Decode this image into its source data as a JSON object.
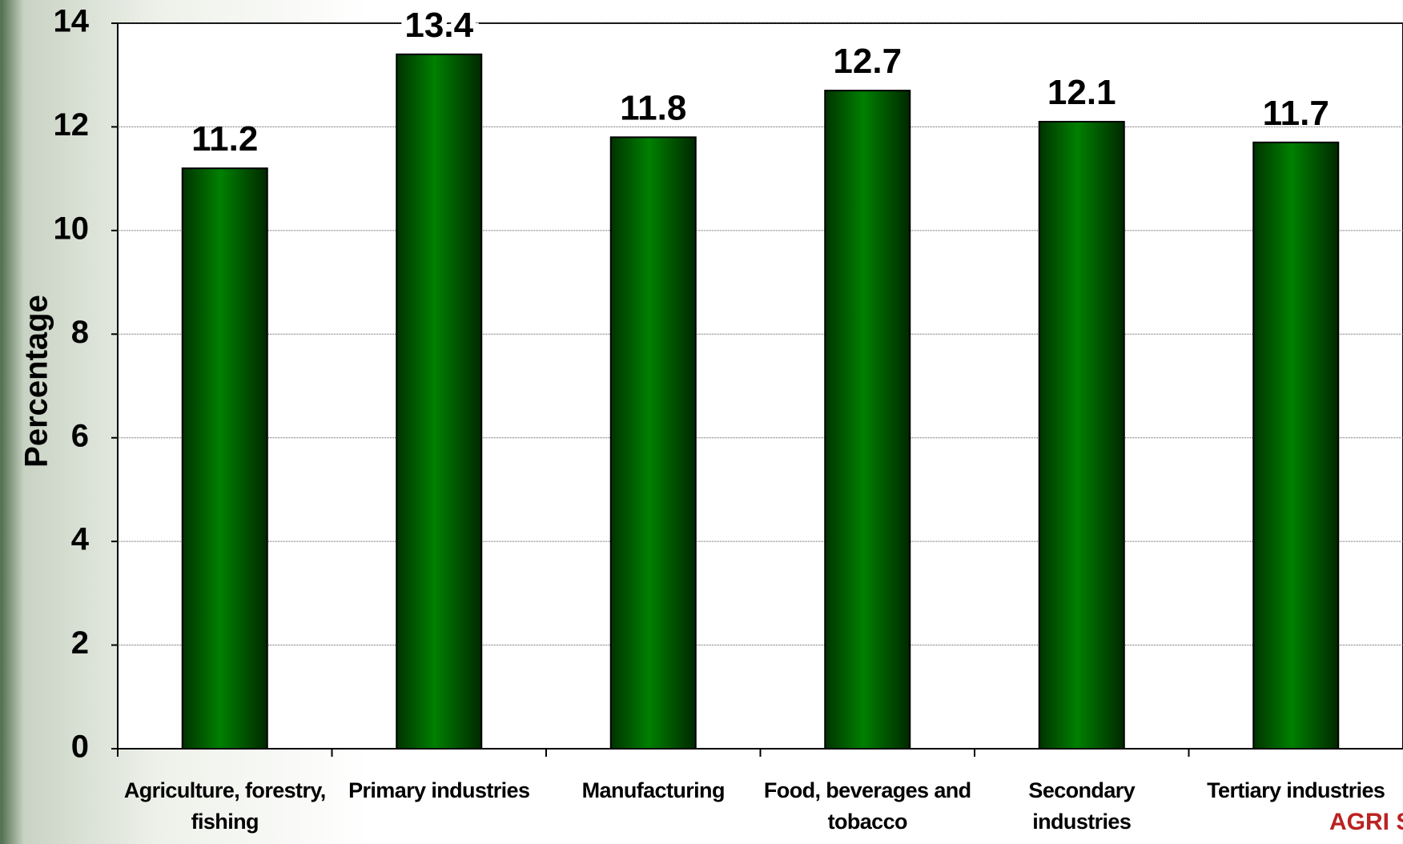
{
  "chart_data": {
    "type": "bar",
    "y_label": "Percentage",
    "categories": [
      "Agriculture, forestry, fishing",
      "Primary industries",
      "Manufacturing",
      "Food, beverages and tobacco",
      "Secondary industries",
      "Tertiary industries"
    ],
    "values": [
      11.2,
      13.4,
      11.8,
      12.7,
      12.1,
      11.7
    ],
    "color": "#008000",
    "ylim": [
      0,
      14
    ],
    "yticks": [
      0,
      2,
      4,
      6,
      8,
      10,
      12,
      14
    ],
    "grid": true
  },
  "logo_text": "AGRI SA"
}
